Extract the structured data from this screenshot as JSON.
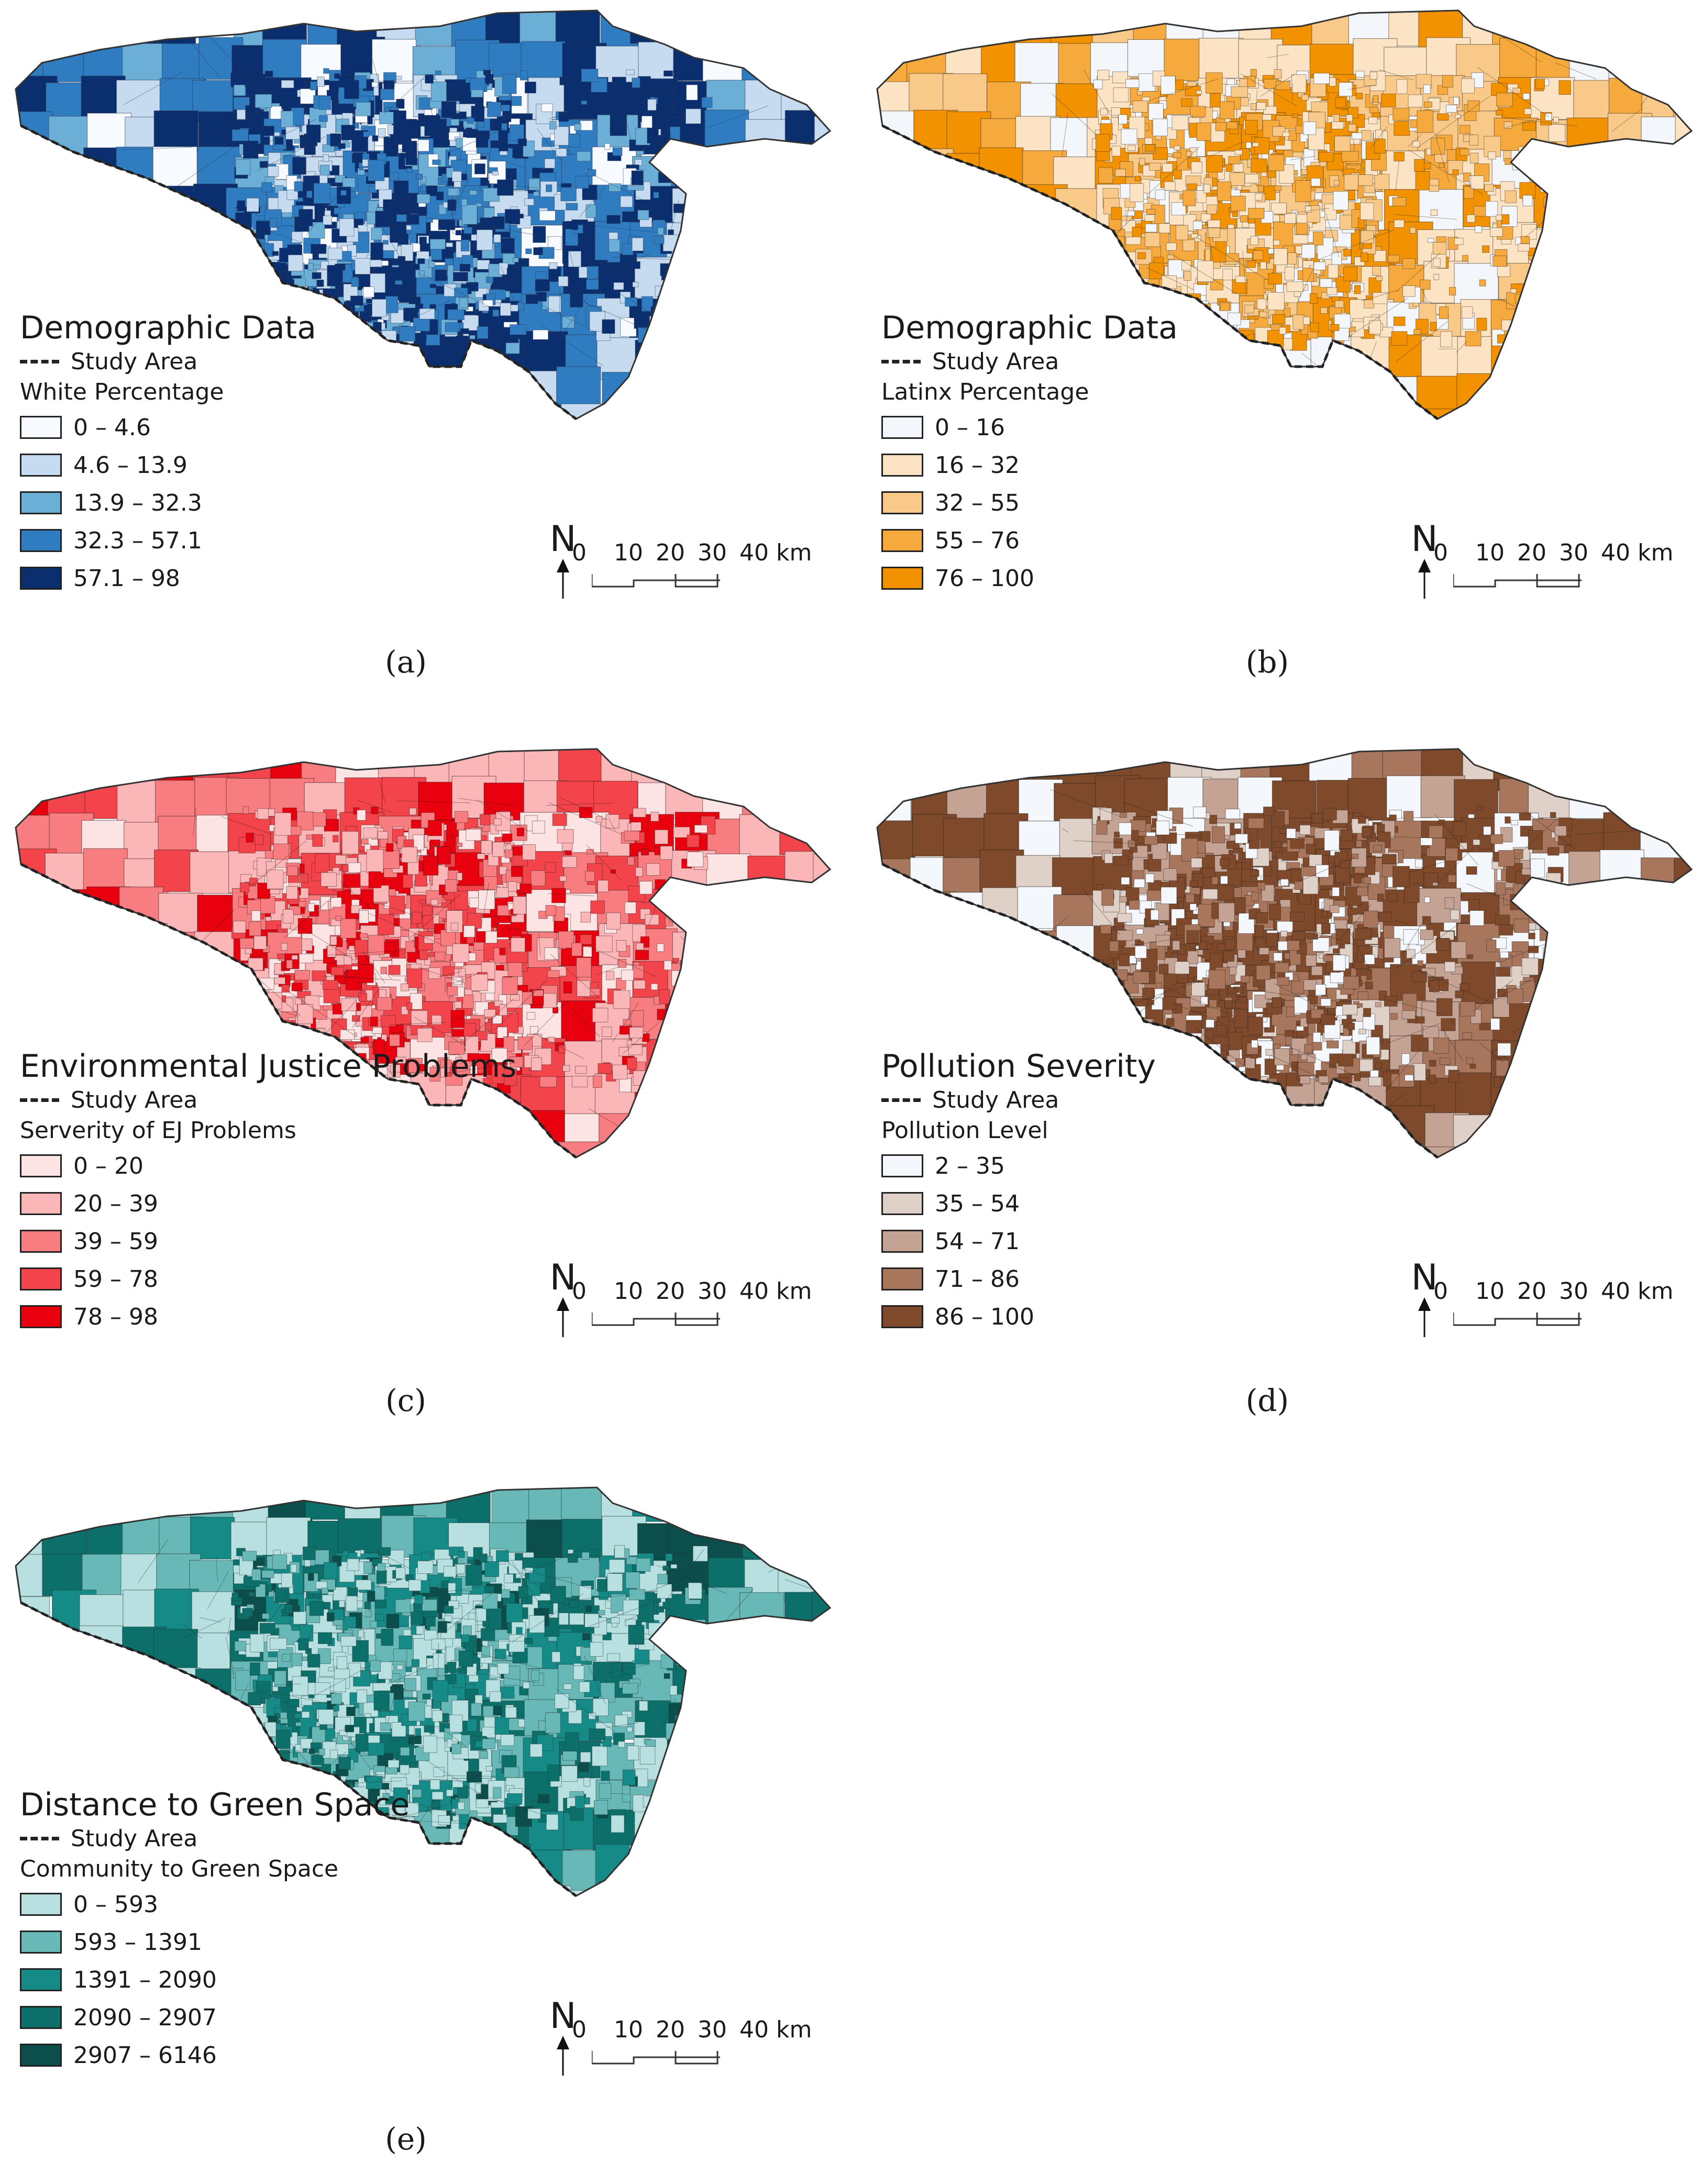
{
  "figure": {
    "panels": [
      {
        "id": "a",
        "caption": "(a)",
        "legend_title": "Demographic Data",
        "study_area_label": "Study Area",
        "subtitle": "White Percentage",
        "classes": [
          {
            "label": "0 – 4.6",
            "color": "#f7fbff"
          },
          {
            "label": "4.6 – 13.9",
            "color": "#c6dbef"
          },
          {
            "label": "13.9 – 32.3",
            "color": "#6baed6"
          },
          {
            "label": "32.3 – 57.1",
            "color": "#2f7cc0"
          },
          {
            "label": "57.1 – 98",
            "color": "#0b2f6e"
          }
        ],
        "fill_weights": [
          0.08,
          0.18,
          0.14,
          0.26,
          0.34
        ],
        "line_color": "#2a3550"
      },
      {
        "id": "b",
        "caption": "(b)",
        "legend_title": "Demographic Data",
        "study_area_label": "Study Area",
        "subtitle": "Latinx Percentage",
        "classes": [
          {
            "label": "0 – 16",
            "color": "#f3f7fb"
          },
          {
            "label": "16 – 32",
            "color": "#fbe3c4"
          },
          {
            "label": "32 – 55",
            "color": "#f9c98a"
          },
          {
            "label": "55 – 76",
            "color": "#f6a93c"
          },
          {
            "label": "76 – 100",
            "color": "#f39200"
          }
        ],
        "fill_weights": [
          0.14,
          0.28,
          0.18,
          0.2,
          0.2
        ],
        "line_color": "#3a3020"
      },
      {
        "id": "c",
        "caption": "(c)",
        "legend_title": "Environmental Justice Problems",
        "study_area_label": "Study Area",
        "subtitle": "Serverity of EJ Problems",
        "classes": [
          {
            "label": "0 – 20",
            "color": "#fde4e4"
          },
          {
            "label": "20 – 39",
            "color": "#fbb6b8"
          },
          {
            "label": "39 – 59",
            "color": "#f77d80"
          },
          {
            "label": "59 – 78",
            "color": "#f2444a"
          },
          {
            "label": "78 – 98",
            "color": "#e8000f"
          }
        ],
        "fill_weights": [
          0.14,
          0.34,
          0.2,
          0.16,
          0.16
        ],
        "line_color": "#3c1c1c"
      },
      {
        "id": "d",
        "caption": "(d)",
        "legend_title": "Pollution Severity",
        "study_area_label": "Study Area",
        "subtitle": "Pollution Level",
        "classes": [
          {
            "label": "2 – 35",
            "color": "#f4f7fb"
          },
          {
            "label": "35 – 54",
            "color": "#dfd0c8"
          },
          {
            "label": "54 – 71",
            "color": "#c4a294"
          },
          {
            "label": "71 – 86",
            "color": "#a8765c"
          },
          {
            "label": "86 – 100",
            "color": "#7e4a2b"
          }
        ],
        "fill_weights": [
          0.14,
          0.1,
          0.12,
          0.22,
          0.42
        ],
        "line_color": "#2c221c"
      },
      {
        "id": "e",
        "caption": "(e)",
        "legend_title": "Distance to Green Space",
        "study_area_label": "Study Area",
        "subtitle": "Community to Green Space",
        "classes": [
          {
            "label": "0 – 593",
            "color": "#b8e0e0"
          },
          {
            "label": "593 – 1391",
            "color": "#67b8b6"
          },
          {
            "label": "1391 – 2090",
            "color": "#168a86"
          },
          {
            "label": "2090 – 2907",
            "color": "#0d6f69"
          },
          {
            "label": "2907 – 6146",
            "color": "#0b4e4b"
          }
        ],
        "fill_weights": [
          0.38,
          0.2,
          0.14,
          0.2,
          0.08
        ],
        "line_color": "#203838"
      }
    ],
    "north_arrow_label": "N",
    "scale_bar": {
      "ticks": [
        "0",
        "10",
        "20",
        "30",
        "40 km"
      ]
    }
  }
}
